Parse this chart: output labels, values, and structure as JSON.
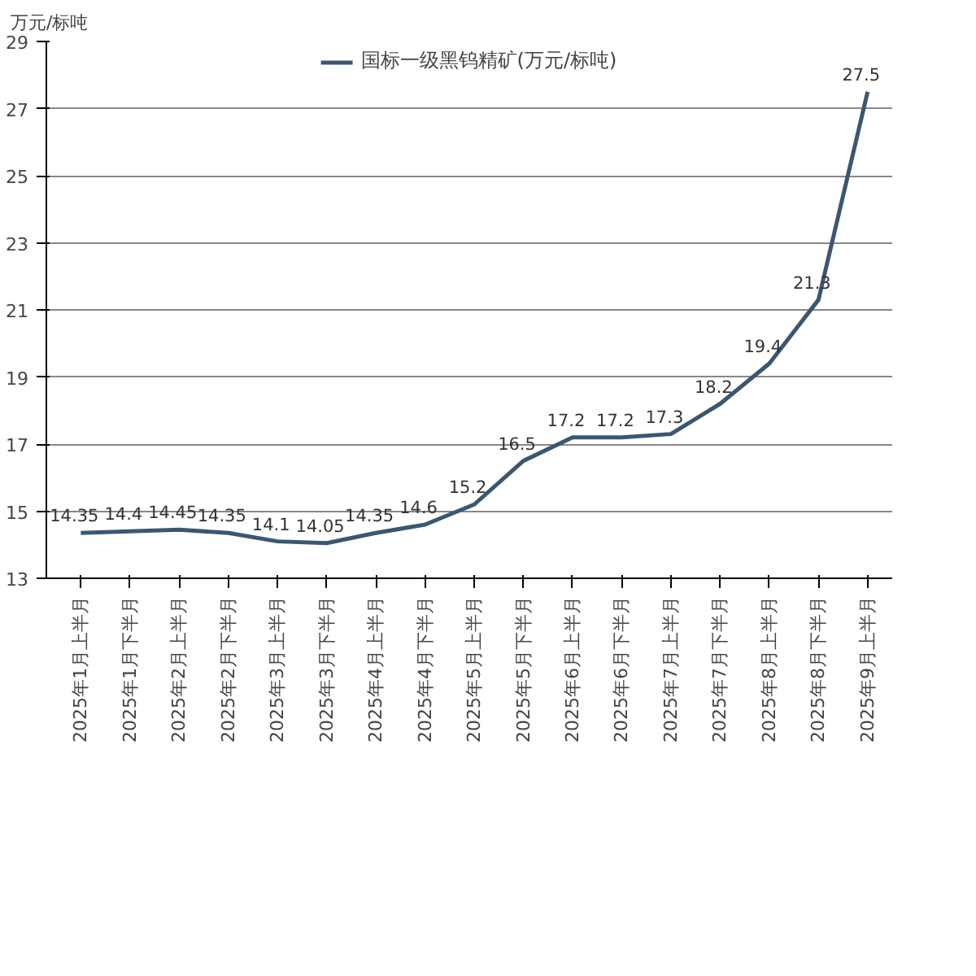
{
  "chart_data": {
    "type": "line",
    "ylabel": "万元/标吨",
    "categories": [
      "2025年1月上半月",
      "2025年1月下半月",
      "2025年2月上半月",
      "2025年2月下半月",
      "2025年3月上半月",
      "2025年3月下半月",
      "2025年4月上半月",
      "2025年4月下半月",
      "2025年5月上半月",
      "2025年5月下半月",
      "2025年6月上半月",
      "2025年6月下半月",
      "2025年7月上半月",
      "2025年7月下半月",
      "2025年8月上半月",
      "2025年8月下半月",
      "2025年9月上半月"
    ],
    "series": [
      {
        "name": "国标一级黑钨精矿(万元/标吨)",
        "color": "#3d5670",
        "values": [
          14.35,
          14.4,
          14.45,
          14.35,
          14.1,
          14.05,
          14.35,
          14.6,
          15.2,
          16.5,
          17.2,
          17.2,
          17.3,
          18.2,
          19.4,
          21.3,
          27.5
        ]
      }
    ],
    "ylim": [
      13,
      29
    ],
    "yticks": [
      13,
      15,
      17,
      19,
      21,
      23,
      25,
      27,
      29
    ],
    "grid": "y",
    "legend": "top",
    "data_labels": true,
    "marker": "none",
    "line_style": "solid"
  }
}
